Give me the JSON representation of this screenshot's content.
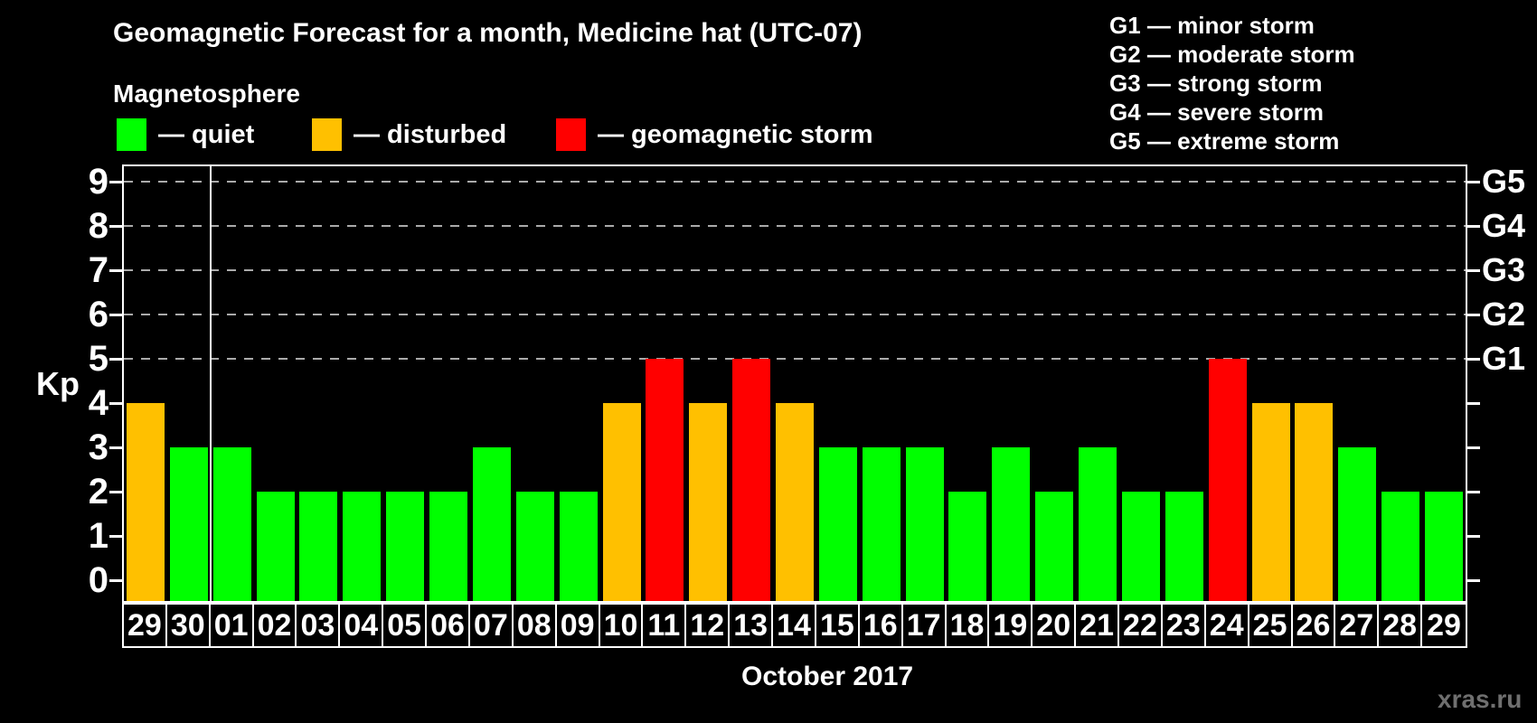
{
  "title": "Geomagnetic Forecast for a month, Medicine hat (UTC-07)",
  "subtitle": "Magnetosphere",
  "legend": {
    "items": [
      {
        "key": "quiet",
        "label": "— quiet",
        "color": "#00ff00"
      },
      {
        "key": "disturbed",
        "label": "— disturbed",
        "color": "#ffc000"
      },
      {
        "key": "storm",
        "label": "— geomagnetic storm",
        "color": "#ff0000"
      }
    ]
  },
  "g_legend": [
    "G1 — minor storm",
    "G2 — moderate storm",
    "G3 — strong storm",
    "G4 — severe storm",
    "G5 — extreme storm"
  ],
  "watermark": "xras.ru",
  "chart_data": {
    "type": "bar",
    "title": "Geomagnetic Forecast for a month, Medicine hat (UTC-07)",
    "xlabel": "October 2017",
    "ylabel": "Kp",
    "ylim": [
      0,
      9.4
    ],
    "yticks": [
      0,
      1,
      2,
      3,
      4,
      5,
      6,
      7,
      8,
      9
    ],
    "gridlines_at": [
      5,
      6,
      7,
      8,
      9
    ],
    "grid_style": "dashed",
    "legend_position": "top",
    "right_axis": [
      {
        "kp": 5,
        "label": "G1"
      },
      {
        "kp": 6,
        "label": "G2"
      },
      {
        "kp": 7,
        "label": "G3"
      },
      {
        "kp": 8,
        "label": "G4"
      },
      {
        "kp": 9,
        "label": "G5"
      }
    ],
    "month_separator_after_columns": 2,
    "status_colors": {
      "quiet": "#00ff00",
      "disturbed": "#ffc000",
      "storm": "#ff0000"
    },
    "categories": [
      "29",
      "30",
      "01",
      "02",
      "03",
      "04",
      "05",
      "06",
      "07",
      "08",
      "09",
      "10",
      "11",
      "12",
      "13",
      "14",
      "15",
      "16",
      "17",
      "18",
      "19",
      "20",
      "21",
      "22",
      "23",
      "24",
      "25",
      "26",
      "27",
      "28",
      "29"
    ],
    "bars": [
      {
        "day": "29",
        "kp": 4,
        "status": "disturbed"
      },
      {
        "day": "30",
        "kp": 3,
        "status": "quiet"
      },
      {
        "day": "01",
        "kp": 3,
        "status": "quiet"
      },
      {
        "day": "02",
        "kp": 2,
        "status": "quiet"
      },
      {
        "day": "03",
        "kp": 2,
        "status": "quiet"
      },
      {
        "day": "04",
        "kp": 2,
        "status": "quiet"
      },
      {
        "day": "05",
        "kp": 2,
        "status": "quiet"
      },
      {
        "day": "06",
        "kp": 2,
        "status": "quiet"
      },
      {
        "day": "07",
        "kp": 3,
        "status": "quiet"
      },
      {
        "day": "08",
        "kp": 2,
        "status": "quiet"
      },
      {
        "day": "09",
        "kp": 2,
        "status": "quiet"
      },
      {
        "day": "10",
        "kp": 4,
        "status": "disturbed"
      },
      {
        "day": "11",
        "kp": 5,
        "status": "storm"
      },
      {
        "day": "12",
        "kp": 4,
        "status": "disturbed"
      },
      {
        "day": "13",
        "kp": 5,
        "status": "storm"
      },
      {
        "day": "14",
        "kp": 4,
        "status": "disturbed"
      },
      {
        "day": "15",
        "kp": 3,
        "status": "quiet"
      },
      {
        "day": "16",
        "kp": 3,
        "status": "quiet"
      },
      {
        "day": "17",
        "kp": 3,
        "status": "quiet"
      },
      {
        "day": "18",
        "kp": 2,
        "status": "quiet"
      },
      {
        "day": "19",
        "kp": 3,
        "status": "quiet"
      },
      {
        "day": "20",
        "kp": 2,
        "status": "quiet"
      },
      {
        "day": "21",
        "kp": 3,
        "status": "quiet"
      },
      {
        "day": "22",
        "kp": 2,
        "status": "quiet"
      },
      {
        "day": "23",
        "kp": 2,
        "status": "quiet"
      },
      {
        "day": "24",
        "kp": 5,
        "status": "storm"
      },
      {
        "day": "25",
        "kp": 4,
        "status": "disturbed"
      },
      {
        "day": "26",
        "kp": 4,
        "status": "disturbed"
      },
      {
        "day": "27",
        "kp": 3,
        "status": "quiet"
      },
      {
        "day": "28",
        "kp": 2,
        "status": "quiet"
      },
      {
        "day": "29",
        "kp": 2,
        "status": "quiet"
      }
    ]
  }
}
